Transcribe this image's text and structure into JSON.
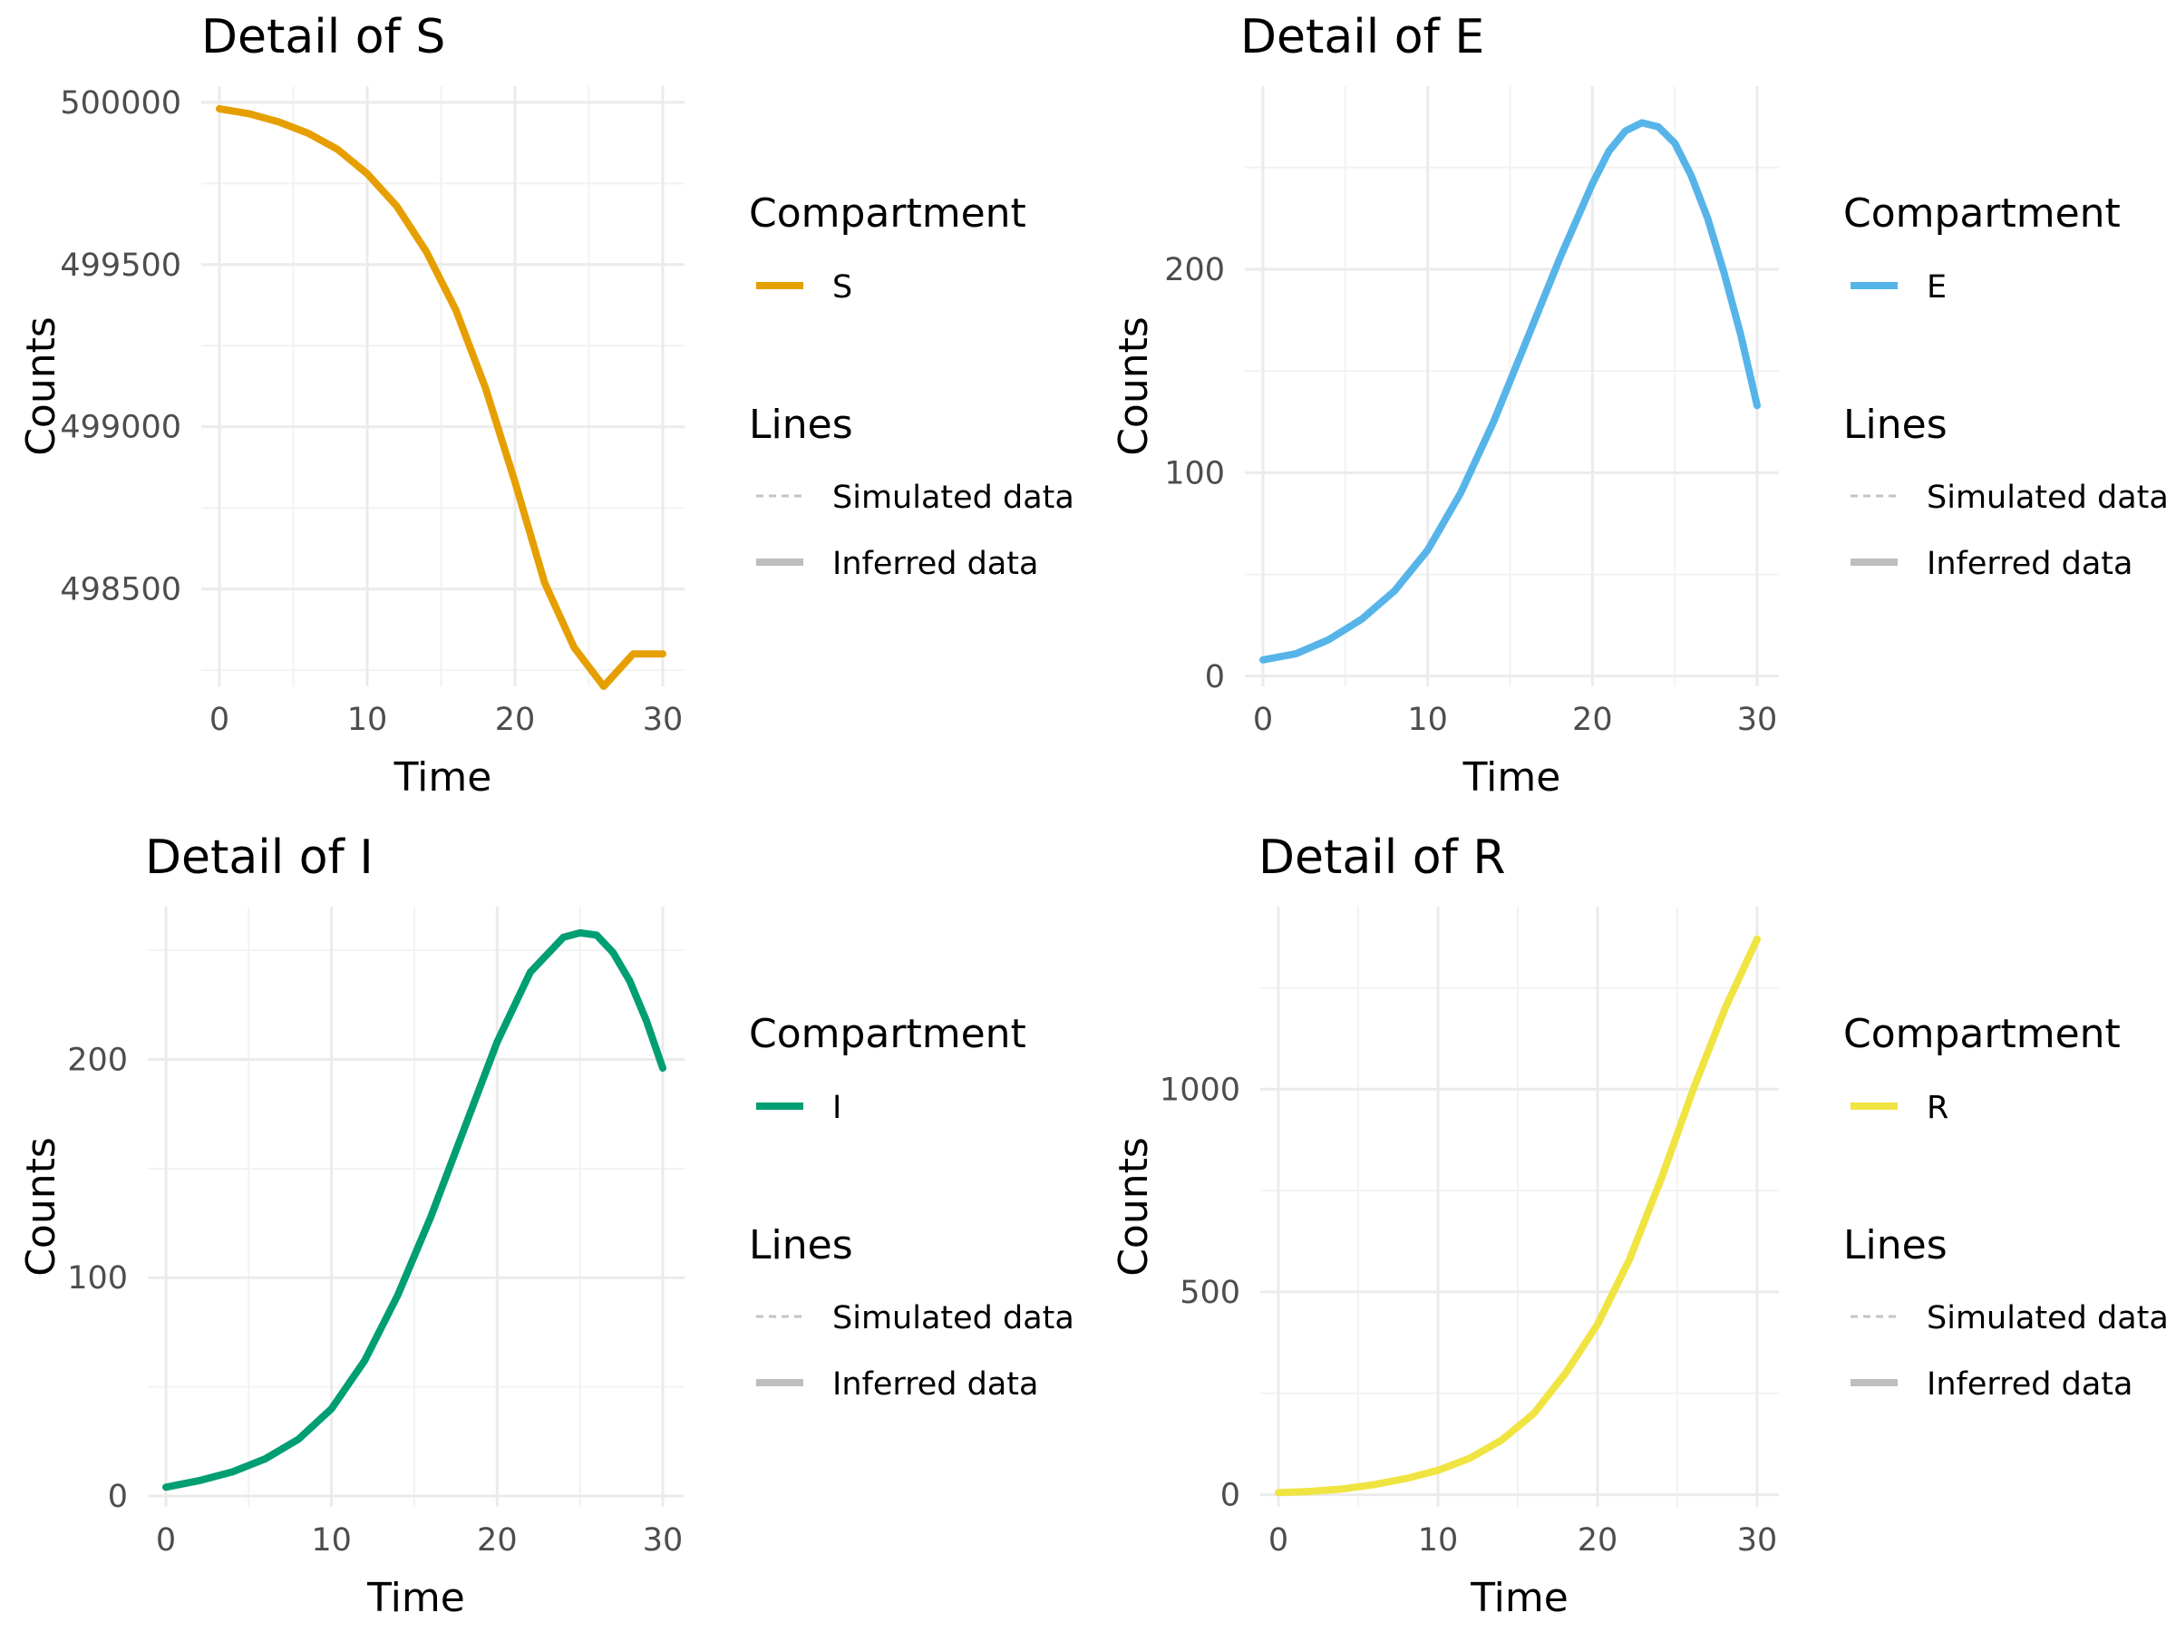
{
  "chart_data": [
    {
      "type": "line",
      "title": "Detail of S",
      "xlabel": "Time",
      "ylabel": "Counts",
      "xlim": [
        0,
        30
      ],
      "ylim": [
        498200,
        500050
      ],
      "x_ticks": [
        0,
        10,
        20,
        30
      ],
      "y_ticks": [
        498500,
        499000,
        499500,
        500000
      ],
      "y_tick_labels": [
        "498500",
        "499000",
        "499500",
        "500000"
      ],
      "grid": true,
      "color": "#E69F00",
      "x": [
        0,
        2,
        4,
        6,
        8,
        10,
        12,
        14,
        16,
        18,
        20,
        22,
        24,
        26,
        28,
        30
      ],
      "values": [
        499980,
        499965,
        499940,
        499905,
        499855,
        499780,
        499680,
        499540,
        499360,
        499120,
        498830,
        498520,
        498320,
        498200,
        498300,
        498300
      ],
      "legend": {
        "compartment_title": "Compartment",
        "compartment_label": "S",
        "lines_title": "Lines",
        "simulated_label": "Simulated data",
        "inferred_label": "Inferred data"
      }
    },
    {
      "type": "line",
      "title": "Detail of E",
      "xlabel": "Time",
      "ylabel": "Counts",
      "xlim": [
        0,
        30
      ],
      "ylim": [
        -5,
        290
      ],
      "x_ticks": [
        0,
        10,
        20,
        30
      ],
      "y_ticks": [
        0,
        100,
        200
      ],
      "y_tick_labels": [
        "0",
        "100",
        "200"
      ],
      "grid": true,
      "color": "#56B4E9",
      "x": [
        0,
        2,
        4,
        6,
        8,
        10,
        12,
        14,
        16,
        18,
        20,
        21,
        22,
        23,
        24,
        25,
        26,
        27,
        28,
        29,
        30
      ],
      "values": [
        8,
        11,
        18,
        28,
        42,
        62,
        90,
        125,
        165,
        205,
        242,
        258,
        268,
        272,
        270,
        262,
        246,
        225,
        198,
        168,
        133
      ],
      "legend": {
        "compartment_title": "Compartment",
        "compartment_label": "E",
        "lines_title": "Lines",
        "simulated_label": "Simulated data",
        "inferred_label": "Inferred data"
      }
    },
    {
      "type": "line",
      "title": "Detail of I",
      "xlabel": "Time",
      "ylabel": "Counts",
      "xlim": [
        0,
        30
      ],
      "ylim": [
        -5,
        270
      ],
      "x_ticks": [
        0,
        10,
        20,
        30
      ],
      "y_ticks": [
        0,
        100,
        200
      ],
      "y_tick_labels": [
        "0",
        "100",
        "200"
      ],
      "grid": true,
      "color": "#009E73",
      "x": [
        0,
        2,
        4,
        6,
        8,
        10,
        12,
        14,
        16,
        18,
        20,
        22,
        24,
        25,
        26,
        27,
        28,
        29,
        30
      ],
      "values": [
        4,
        7,
        11,
        17,
        26,
        40,
        62,
        92,
        128,
        168,
        208,
        240,
        256,
        258,
        257,
        249,
        236,
        218,
        196
      ],
      "legend": {
        "compartment_title": "Compartment",
        "compartment_label": "I",
        "lines_title": "Lines",
        "simulated_label": "Simulated data",
        "inferred_label": "Inferred data"
      }
    },
    {
      "type": "line",
      "title": "Detail of R",
      "xlabel": "Time",
      "ylabel": "Counts",
      "xlim": [
        0,
        30
      ],
      "ylim": [
        -30,
        1450
      ],
      "x_ticks": [
        0,
        10,
        20,
        30
      ],
      "y_ticks": [
        0,
        500,
        1000
      ],
      "y_tick_labels": [
        "0",
        "500",
        "1000"
      ],
      "grid": true,
      "color": "#F0E442",
      "x": [
        0,
        2,
        4,
        6,
        8,
        10,
        12,
        14,
        16,
        18,
        20,
        22,
        24,
        26,
        28,
        30
      ],
      "values": [
        5,
        8,
        14,
        25,
        40,
        60,
        90,
        135,
        200,
        300,
        420,
        580,
        780,
        1000,
        1200,
        1370
      ],
      "legend": {
        "compartment_title": "Compartment",
        "compartment_label": "R",
        "lines_title": "Lines",
        "simulated_label": "Simulated data",
        "inferred_label": "Inferred data"
      }
    }
  ]
}
